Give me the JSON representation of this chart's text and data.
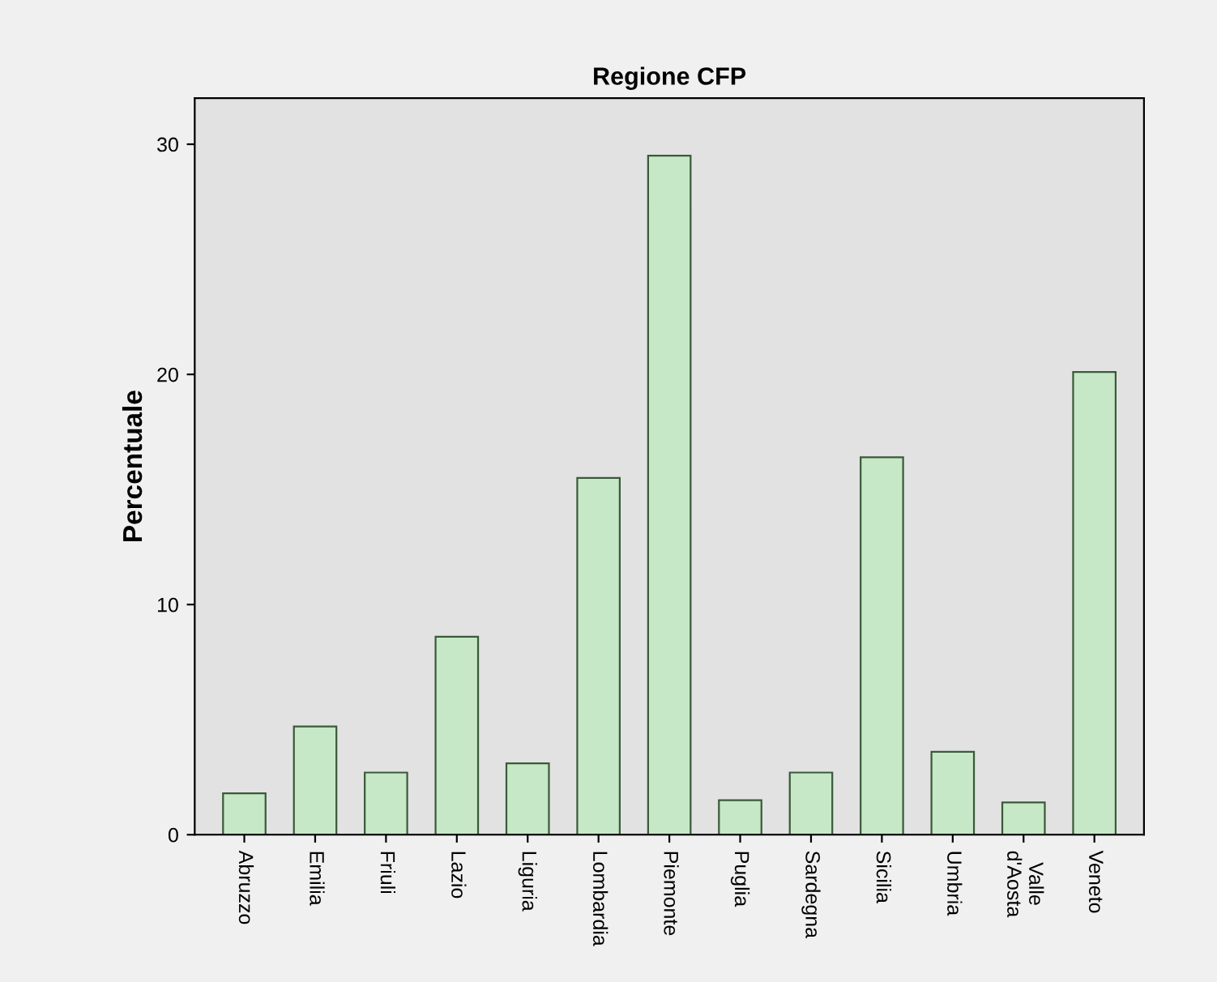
{
  "chart_data": {
    "type": "bar",
    "title": "Regione CFP",
    "ylabel": "Percentuale",
    "categories": [
      "Abruzzo",
      "Emilia",
      "Friuli",
      "Lazio",
      "Liguria",
      "Lombardia",
      "Piemonte",
      "Puglia",
      "Sardegna",
      "Sicilia",
      "Umbria",
      "Valle\nd'Aosta",
      "Veneto"
    ],
    "values": [
      1.8,
      4.7,
      2.7,
      8.6,
      3.1,
      15.5,
      29.5,
      1.5,
      2.7,
      16.4,
      3.6,
      1.4,
      20.1
    ],
    "color": "#c6e8c6",
    "ylim": [
      0,
      32
    ],
    "yticks": [
      0,
      10,
      20,
      30
    ],
    "grid": false
  }
}
